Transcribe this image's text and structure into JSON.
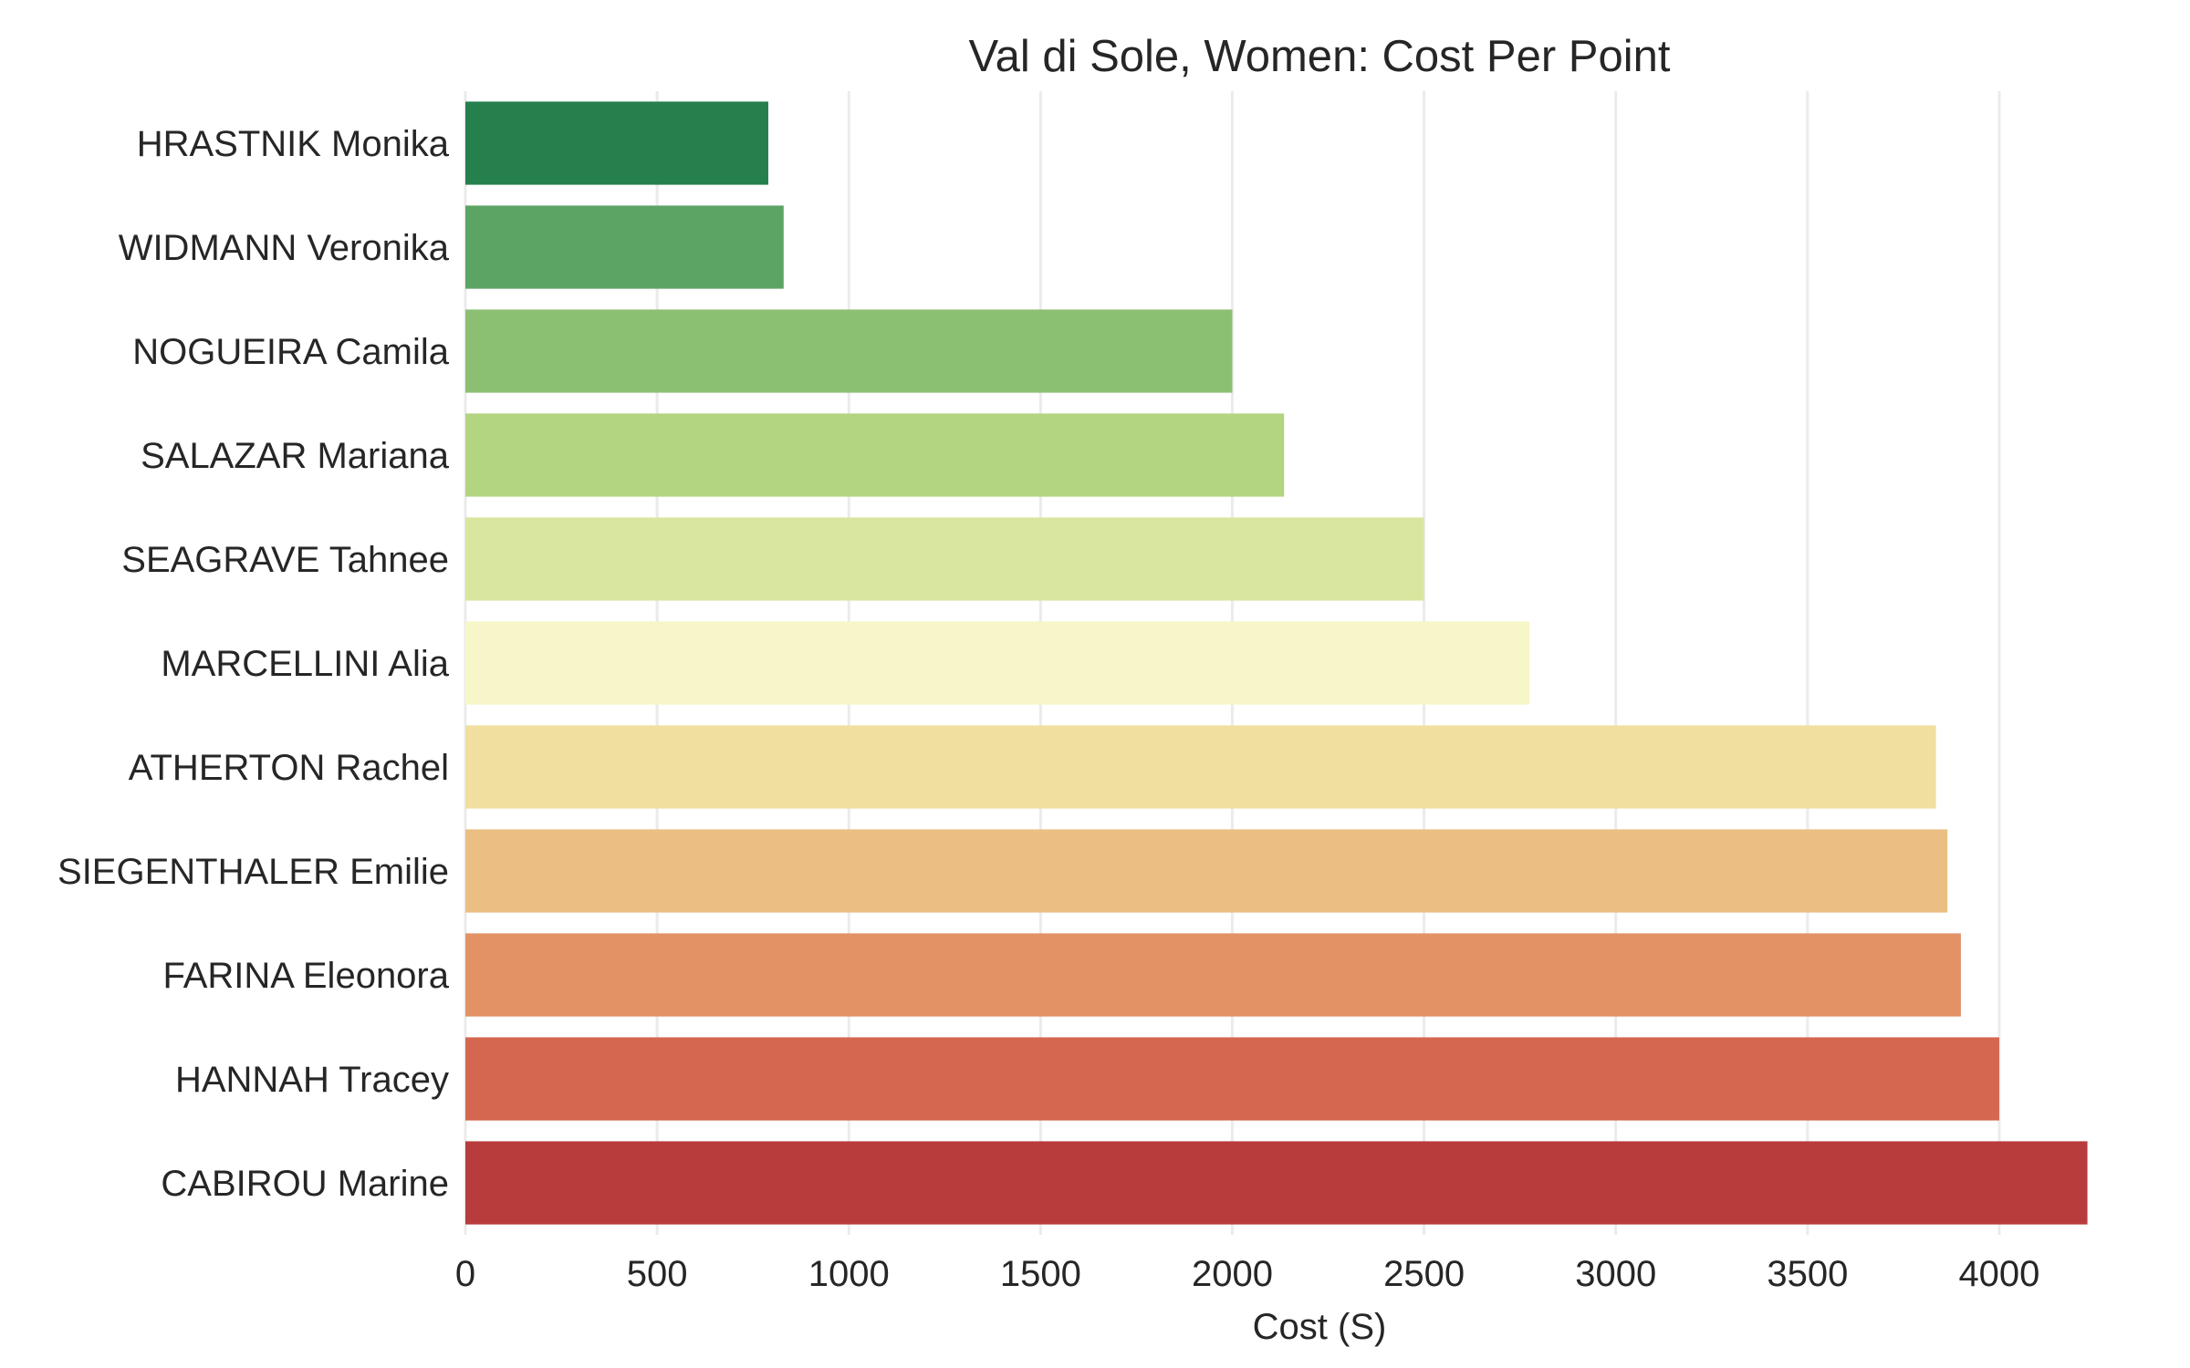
{
  "chart_data": {
    "type": "bar",
    "orientation": "horizontal",
    "title": "Val di Sole, Women: Cost Per Point",
    "xlabel": "Cost (S)",
    "ylabel": "",
    "xlim": [
      0,
      4250
    ],
    "xticks": [
      0,
      500,
      1000,
      1500,
      2000,
      2500,
      3000,
      3500,
      4000
    ],
    "grid": true,
    "legend": "none",
    "categories": [
      "HRASTNIK Monika",
      "WIDMANN Veronika",
      "NOGUEIRA Camila",
      "SALAZAR Mariana",
      "SEAGRAVE Tahnee",
      "MARCELLINI Alia",
      "ATHERTON Rachel",
      "SIEGENTHALER Emilie",
      "FARINA Eleonora",
      "HANNAH Tracey",
      "CABIROU Marine"
    ],
    "values": [
      790,
      830,
      2000,
      2135,
      2500,
      2775,
      3835,
      3865,
      3900,
      4000,
      4230
    ],
    "colors": [
      "#26804d",
      "#5ca464",
      "#8bbf72",
      "#b3d480",
      "#d9e69f",
      "#f7f6c8",
      "#f0df9f",
      "#ebbf83",
      "#e39266",
      "#d56750",
      "#b93c3c"
    ]
  }
}
